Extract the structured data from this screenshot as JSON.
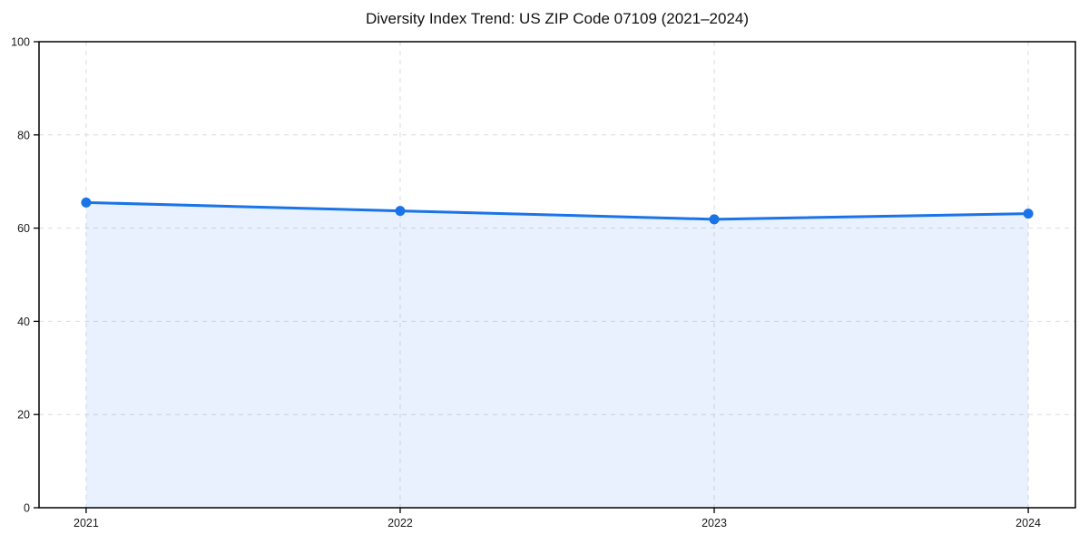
{
  "chart_data": {
    "type": "line",
    "title": "Diversity Index Trend: US ZIP Code 07109 (2021–2024)",
    "x": [
      2021,
      2022,
      2023,
      2024
    ],
    "values": [
      65.5,
      63.7,
      61.9,
      63.1
    ],
    "xlabel": "",
    "ylabel": "",
    "ylim": [
      0,
      100
    ],
    "yticks": [
      0,
      20,
      40,
      60,
      80,
      100
    ],
    "xticks": [
      2021,
      2022,
      2023,
      2024
    ],
    "x_margin_frac": 0.05,
    "grid": true,
    "grid_style": "dashed",
    "legend_position": "none",
    "area_fill_to_zero": true,
    "colors": {
      "line": "#1a73e8",
      "marker": "#1a73e8",
      "fill_rgba": "rgba(26,115,232,0.10)",
      "grid": "#dcdcdc",
      "axis": "#000000",
      "title_text": "#111111",
      "tick_text": "#1a1a1a",
      "background": "#ffffff"
    }
  }
}
